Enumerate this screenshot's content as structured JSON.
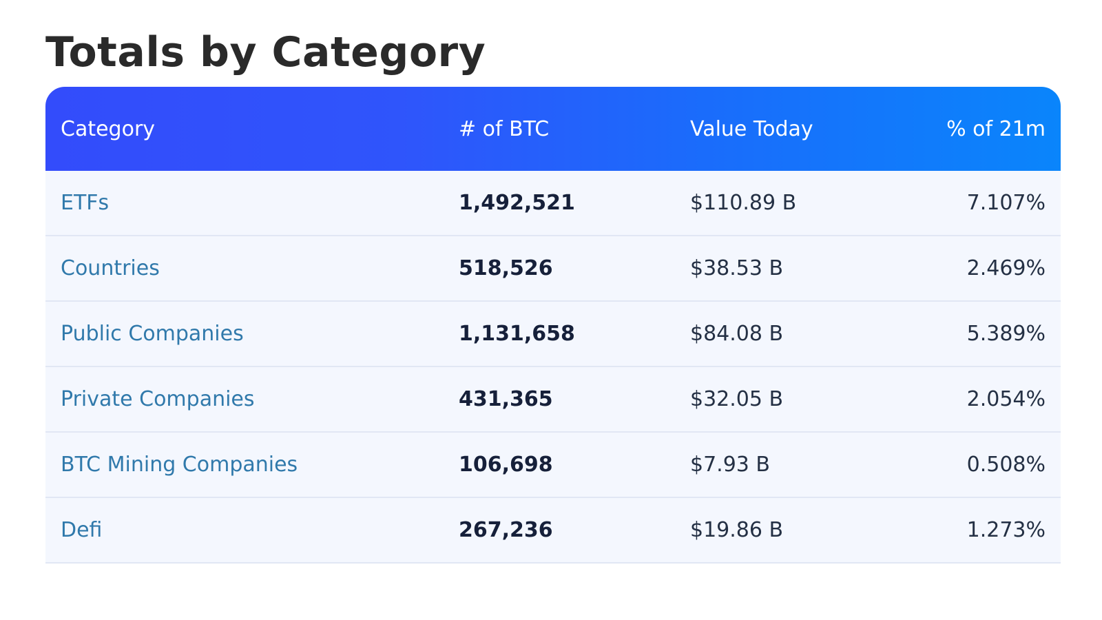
{
  "page": {
    "title": "Totals by Category"
  },
  "table": {
    "headers": {
      "category": "Category",
      "btc": "# of BTC",
      "value": "Value Today",
      "percent": "% of 21m"
    },
    "rows": [
      {
        "category": "ETFs",
        "btc": "1,492,521",
        "value": "$110.89 B",
        "percent": "7.107%"
      },
      {
        "category": "Countries",
        "btc": "518,526",
        "value": "$38.53 B",
        "percent": "2.469%"
      },
      {
        "category": "Public Companies",
        "btc": "1,131,658",
        "value": "$84.08 B",
        "percent": "5.389%"
      },
      {
        "category": "Private Companies",
        "btc": "431,365",
        "value": "$32.05 B",
        "percent": "2.054%"
      },
      {
        "category": "BTC Mining Companies",
        "btc": "106,698",
        "value": "$7.93 B",
        "percent": "0.508%"
      },
      {
        "category": "Defi",
        "btc": "267,236",
        "value": "$19.86 B",
        "percent": "1.273%"
      }
    ]
  },
  "colors": {
    "header_gradient_start": "#334cfb",
    "header_gradient_end": "#0a85fb",
    "link": "#3079ab",
    "row_background": "#f4f7fe"
  }
}
